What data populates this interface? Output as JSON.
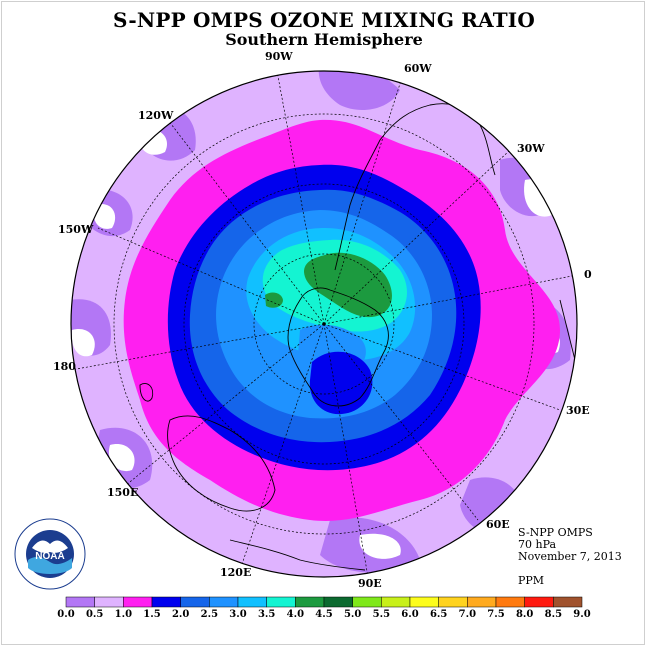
{
  "title": "S-NPP OMPS OZONE MIXING RATIO",
  "subtitle": "Southern Hemisphere",
  "longitude_labels": [
    "90W",
    "60W",
    "120W",
    "30W",
    "150W",
    "0",
    "180",
    "30E",
    "150E",
    "60E",
    "120E",
    "90E"
  ],
  "info": {
    "instrument": "S-NPP OMPS",
    "level": "70 hPa",
    "date": "November 7, 2013",
    "units": "PPM"
  },
  "logo": {
    "name": "noaa-logo",
    "text": "NOAA"
  },
  "colorbar": {
    "ticks": [
      "0.0",
      "0.5",
      "1.0",
      "1.5",
      "2.0",
      "2.5",
      "3.0",
      "3.5",
      "4.0",
      "4.5",
      "5.0",
      "5.5",
      "6.0",
      "6.5",
      "7.0",
      "7.5",
      "8.0",
      "8.5",
      "9.0"
    ],
    "colors": [
      "#b377f5",
      "#dfb3ff",
      "#ff1ff0",
      "#0000ee",
      "#1565ea",
      "#1f92ff",
      "#11c0ff",
      "#14f4d2",
      "#1c9a3f",
      "#0b6a2f",
      "#7fe81a",
      "#c8f01a",
      "#fdfd1c",
      "#ffd31f",
      "#ffaa1f",
      "#ff7a10",
      "#ff1a10",
      "#a0522d"
    ]
  },
  "palette": {
    "water_dark": "#b377f5",
    "water_light": "#dfb3ff",
    "magenta": "#ff1ff0",
    "blue": "#0000ee",
    "mid_blue": "#1565ea",
    "light_blue": "#1f92ff",
    "sky": "#11c0ff",
    "cyan": "#14f4d2",
    "green": "#1c9a3f"
  },
  "chart_data": {
    "type": "heatmap",
    "title": "S-NPP OMPS OZONE MIXING RATIO",
    "subtitle": "Southern Hemisphere",
    "projection": "polar-stereographic",
    "pressure_level": "70 hPa",
    "date": "November 7, 2013",
    "units": "PPM",
    "contour_levels": [
      0.0,
      0.5,
      1.0,
      1.5,
      2.0,
      2.5,
      3.0,
      3.5,
      4.0,
      4.5,
      5.0,
      5.5,
      6.0,
      6.5,
      7.0,
      7.5,
      8.0,
      8.5,
      9.0
    ],
    "grid": true
  }
}
